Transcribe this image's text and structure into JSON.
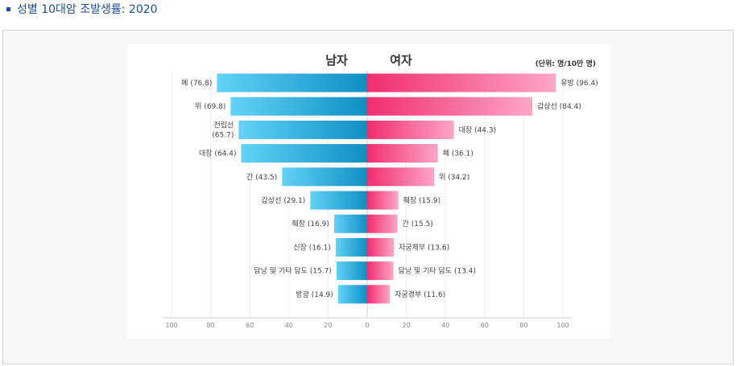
{
  "page": {
    "title": "성별 10대암 조발생률: 2020"
  },
  "chart_data": {
    "type": "bar",
    "orientation": "horizontal-butterfly",
    "panels": [
      {
        "name": "남자",
        "side": "left"
      },
      {
        "name": "여자",
        "side": "right"
      }
    ],
    "unit": "(단위: 명/10만 명)",
    "xlim": [
      0,
      100
    ],
    "ticks": [
      100,
      80,
      60,
      40,
      20,
      0,
      20,
      40,
      60,
      80,
      100
    ],
    "grid": true,
    "male": [
      {
        "label": "폐",
        "value": 76.8
      },
      {
        "label": "위",
        "value": 69.8
      },
      {
        "label": "전립선",
        "value": 65.7
      },
      {
        "label": "대장",
        "value": 64.4
      },
      {
        "label": "간",
        "value": 43.5
      },
      {
        "label": "갑상선",
        "value": 29.1
      },
      {
        "label": "췌장",
        "value": 16.9
      },
      {
        "label": "신장",
        "value": 16.1
      },
      {
        "label": "담낭 및 기타 담도",
        "value": 15.7
      },
      {
        "label": "방광",
        "value": 14.9
      }
    ],
    "female": [
      {
        "label": "유방",
        "value": 96.4
      },
      {
        "label": "갑상선",
        "value": 84.4
      },
      {
        "label": "대장",
        "value": 44.3
      },
      {
        "label": "폐",
        "value": 36.1
      },
      {
        "label": "위",
        "value": 34.2
      },
      {
        "label": "췌장",
        "value": 15.9
      },
      {
        "label": "간",
        "value": 15.5
      },
      {
        "label": "자궁체부",
        "value": 13.6
      },
      {
        "label": "담낭 및 기타 담도",
        "value": 13.4
      },
      {
        "label": "자궁경부",
        "value": 11.6
      }
    ],
    "colors": {
      "male": "#1aa3dc",
      "female": "#f03a78"
    }
  }
}
